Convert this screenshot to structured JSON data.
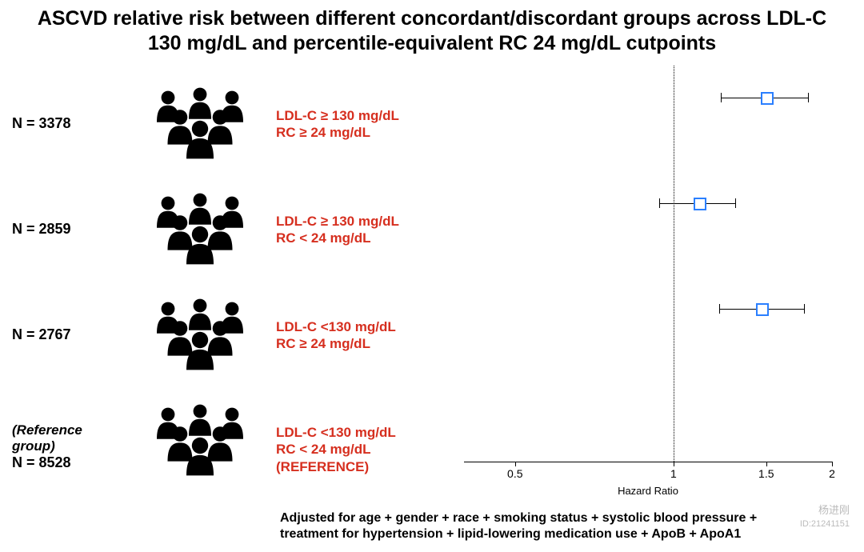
{
  "title": "ASCVD relative risk between different concordant/discordant groups across LDL-C 130 mg/dL and percentile-equivalent RC 24 mg/dL cutpoints",
  "title_color": "#000000",
  "title_fontsize": 25,
  "label_color": "#d62f1f",
  "point_border_color": "#2a7fff",
  "point_fill_color": "#ffffff",
  "ci_line_color": "#000000",
  "ref_line_color": "#000000",
  "axis_color": "#000000",
  "background_color": "#ffffff",
  "plot": {
    "type": "forest",
    "xlabel": "Hazard Ratio",
    "xscale": "log",
    "xlim": [
      0.4,
      2.0
    ],
    "ticks": [
      0.5,
      1,
      1.5,
      2
    ],
    "tick_labels": [
      "0.5",
      "1",
      "1.5",
      "2"
    ],
    "reference_value": 1
  },
  "rows": [
    {
      "n_label": "N = 3378",
      "is_reference": false,
      "desc_line1": "LDL-C ≥ 130 mg/dL",
      "desc_line2": "RC ≥ 24 mg/dL",
      "desc_line3": "",
      "hr": 1.5,
      "ci_low": 1.23,
      "ci_high": 1.8
    },
    {
      "n_label": "N = 2859",
      "is_reference": false,
      "desc_line1": "LDL-C ≥ 130 mg/dL",
      "desc_line2": "RC < 24 mg/dL",
      "desc_line3": "",
      "hr": 1.12,
      "ci_low": 0.94,
      "ci_high": 1.31
    },
    {
      "n_label": "N = 2767",
      "is_reference": false,
      "desc_line1": "LDL-C <130 mg/dL",
      "desc_line2": "RC ≥ 24 mg/dL",
      "desc_line3": "",
      "hr": 1.47,
      "ci_low": 1.22,
      "ci_high": 1.77
    },
    {
      "n_label": "N = 8528",
      "ref_label": "(Reference group)",
      "is_reference": true,
      "desc_line1": "LDL-C <130 mg/dL",
      "desc_line2": "RC < 24 mg/dL",
      "desc_line3": "(REFERENCE)",
      "hr": null,
      "ci_low": null,
      "ci_high": null
    }
  ],
  "row_y_offsets": [
    12,
    144,
    276,
    408
  ],
  "footnote": "Adjusted for age + gender + race + smoking status + systolic blood pressure + treatment for hypertension + lipid-lowering medication use + ApoB + ApoA1",
  "watermark": {
    "name": "杨进刚",
    "id": "ID:21241151"
  }
}
